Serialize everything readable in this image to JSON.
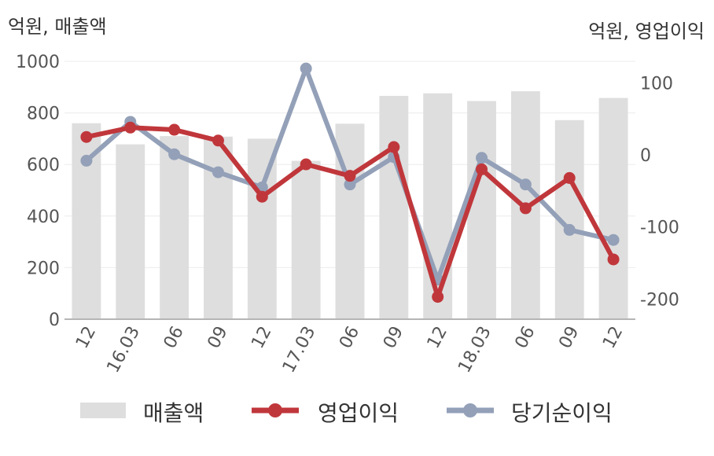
{
  "chart_data": {
    "type": "bar+line",
    "left_unit": "억원, 매출액",
    "right_unit": "억원, 영업이익",
    "categories": [
      "12",
      "16.03",
      "06",
      "09",
      "12",
      "17.03",
      "06",
      "09",
      "12",
      "18.03",
      "06",
      "09",
      "12"
    ],
    "left_axis": {
      "ylim": [
        0,
        1000
      ],
      "ticks": [
        0,
        200,
        400,
        600,
        800,
        1000
      ]
    },
    "right_axis": {
      "ylim": [
        -228,
        130
      ],
      "ticks": [
        -200,
        -100,
        0,
        100
      ]
    },
    "series": [
      {
        "name": "매출액",
        "kind": "bar",
        "axis": "left",
        "color": "#dedede",
        "values": [
          760,
          678,
          710,
          708,
          700,
          614,
          758,
          866,
          876,
          846,
          884,
          772,
          858
        ]
      },
      {
        "name": "영업이익",
        "kind": "line",
        "axis": "right",
        "color": "#c0373b",
        "values": [
          25,
          38,
          35,
          20,
          -58,
          -13,
          -29,
          11,
          -197,
          -20,
          -74,
          -32,
          -145
        ]
      },
      {
        "name": "당기순이익",
        "kind": "line",
        "axis": "right",
        "color": "#93a0b8",
        "values": [
          -8,
          46,
          1,
          -24,
          -45,
          120,
          -41,
          -3,
          -173,
          -4,
          -41,
          -104,
          -118
        ]
      }
    ],
    "grid": true,
    "legend": "bottom"
  }
}
